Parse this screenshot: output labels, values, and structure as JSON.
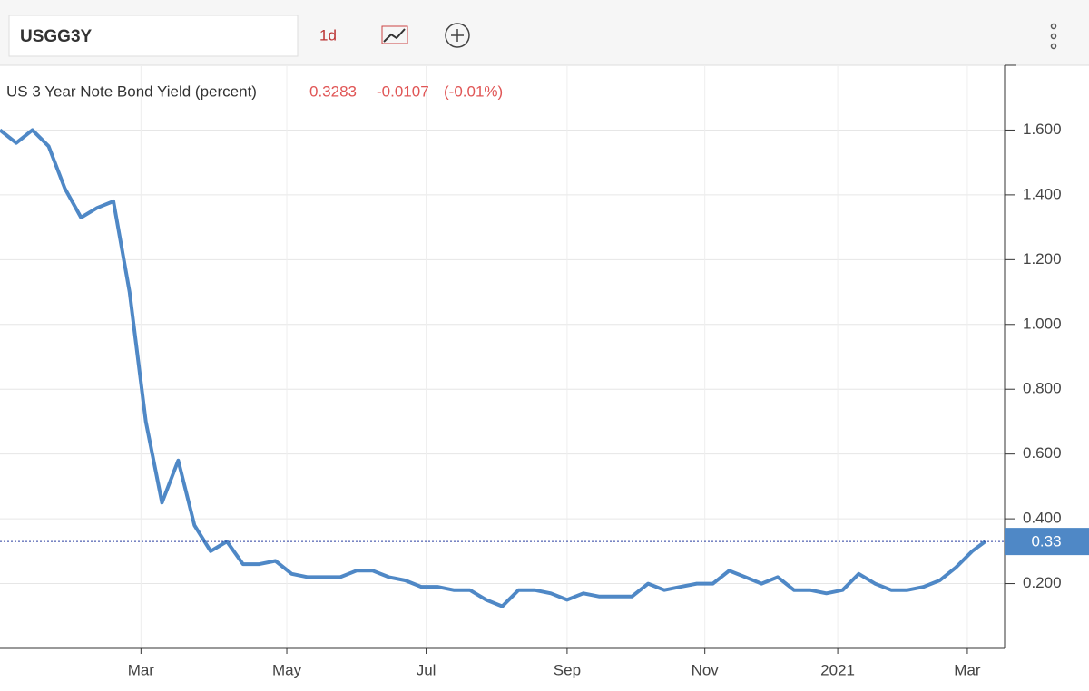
{
  "toolbar": {
    "symbol": "USGG3Y",
    "period": "1d"
  },
  "chart_data": {
    "type": "line",
    "title": "US 3 Year Note Bond Yield (percent)",
    "last": 0.3283,
    "change": -0.0107,
    "change_pct": "(-0.01%)",
    "x": [
      0,
      1,
      2,
      3,
      4,
      5,
      6,
      7,
      8,
      9,
      10,
      11,
      12,
      13,
      14,
      15,
      16,
      17,
      18,
      19,
      20,
      21,
      22,
      23,
      24,
      25,
      26,
      27,
      28,
      29,
      30,
      31,
      32,
      33,
      34,
      35,
      36,
      37,
      38,
      39,
      40,
      41,
      42,
      43,
      44,
      45,
      46,
      47,
      48,
      49,
      50,
      51,
      52,
      53,
      54,
      55,
      56,
      57,
      58,
      59,
      60,
      60.8
    ],
    "series": [
      {
        "name": "USGG3Y",
        "color": "#4f88c6",
        "values": [
          1.6,
          1.56,
          1.6,
          1.55,
          1.42,
          1.33,
          1.36,
          1.38,
          1.1,
          0.7,
          0.45,
          0.58,
          0.38,
          0.3,
          0.33,
          0.26,
          0.26,
          0.27,
          0.23,
          0.22,
          0.22,
          0.22,
          0.24,
          0.24,
          0.22,
          0.21,
          0.19,
          0.19,
          0.18,
          0.18,
          0.15,
          0.13,
          0.18,
          0.18,
          0.17,
          0.15,
          0.17,
          0.16,
          0.16,
          0.16,
          0.2,
          0.18,
          0.19,
          0.2,
          0.2,
          0.24,
          0.22,
          0.2,
          0.22,
          0.18,
          0.18,
          0.17,
          0.18,
          0.23,
          0.2,
          0.18,
          0.18,
          0.19,
          0.21,
          0.25,
          0.3,
          0.33
        ]
      }
    ],
    "xlim": [
      0,
      62
    ],
    "xticks": [
      {
        "value": 8.7,
        "label": "Mar"
      },
      {
        "value": 17.7,
        "label": "May"
      },
      {
        "value": 26.3,
        "label": "Jul"
      },
      {
        "value": 35,
        "label": "Sep"
      },
      {
        "value": 43.5,
        "label": "Nov"
      },
      {
        "value": 51.7,
        "label": "2021"
      },
      {
        "value": 59.7,
        "label": "Mar"
      }
    ],
    "ylim": [
      0,
      1.8
    ],
    "yticks": [
      {
        "value": 0.2,
        "label": "0.200"
      },
      {
        "value": 0.4,
        "label": "0.400"
      },
      {
        "value": 0.6,
        "label": "0.600"
      },
      {
        "value": 0.8,
        "label": "0.800"
      },
      {
        "value": 1.0,
        "label": "1.000"
      },
      {
        "value": 1.2,
        "label": "1.200"
      },
      {
        "value": 1.4,
        "label": "1.400"
      },
      {
        "value": 1.6,
        "label": "1.600"
      }
    ],
    "price_tag": 0.33,
    "grid": true
  }
}
